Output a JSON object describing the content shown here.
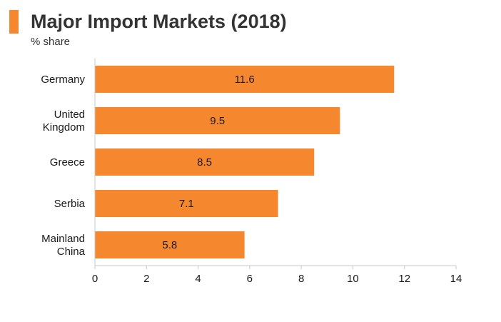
{
  "header": {
    "title": "Major Import Markets (2018)",
    "subtitle": "% share"
  },
  "colors": {
    "accent": "#f5872f",
    "bar": "#f5872f",
    "axis": "#c8c8c8",
    "text": "#1a1a1a"
  },
  "chart_data": {
    "type": "bar",
    "orientation": "horizontal",
    "title": "Major Import Markets (2018)",
    "subtitle": "% share",
    "categories": [
      [
        "Germany"
      ],
      [
        "United",
        "Kingdom"
      ],
      [
        "Greece"
      ],
      [
        "Serbia"
      ],
      [
        "Mainland",
        "China"
      ]
    ],
    "values": [
      11.6,
      9.5,
      8.5,
      7.1,
      5.8
    ],
    "data_labels": [
      "11.6",
      "9.5",
      "8.5",
      "7.1",
      "5.8"
    ],
    "xlim": [
      0,
      14
    ],
    "xticks": [
      0,
      2,
      4,
      6,
      8,
      10,
      12,
      14
    ],
    "grid": false,
    "legend": "none"
  }
}
